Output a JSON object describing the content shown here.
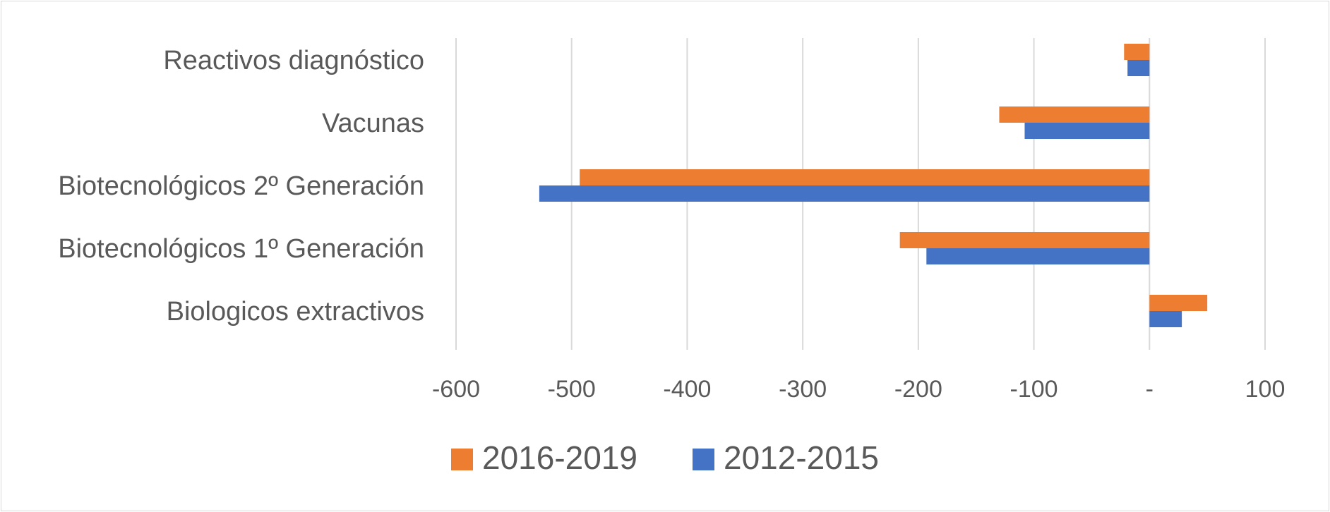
{
  "chart_data": {
    "type": "bar",
    "orientation": "horizontal",
    "title": "",
    "xlabel": "",
    "ylabel": "",
    "categories": [
      "Reactivos diagnóstico",
      "Vacunas",
      "Biotecnológicos 2º Generación",
      "Biotecnológicos 1º Generación",
      "Biologicos extractivos"
    ],
    "series": [
      {
        "name": "2016-2019",
        "color": "#ED7D31",
        "values": [
          -22,
          -130,
          -493,
          -216,
          50
        ]
      },
      {
        "name": "2012-2015",
        "color": "#4472C4",
        "values": [
          -19,
          -108,
          -528,
          -193,
          28
        ]
      }
    ],
    "xlim": [
      -600,
      100
    ],
    "ticks": [
      {
        "value": -600,
        "label": "-600"
      },
      {
        "value": -500,
        "label": "-500"
      },
      {
        "value": -400,
        "label": "-400"
      },
      {
        "value": -300,
        "label": "-300"
      },
      {
        "value": -200,
        "label": "-200"
      },
      {
        "value": -100,
        "label": "-100"
      },
      {
        "value": 0,
        "label": "-"
      },
      {
        "value": 100,
        "label": "100"
      }
    ],
    "grid": true,
    "legend_position": "bottom"
  }
}
